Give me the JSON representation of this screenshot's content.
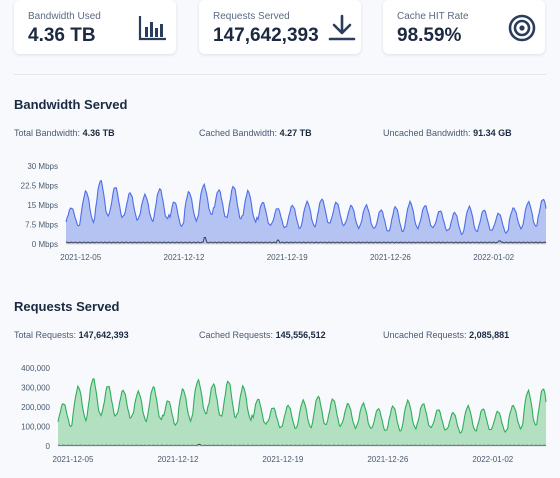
{
  "cards": [
    {
      "label": "Bandwidth Used",
      "value": "4.36 TB",
      "icon": "bar-chart-icon"
    },
    {
      "label": "Requests Served",
      "value": "147,642,393",
      "icon": "download-icon"
    },
    {
      "label": "Cache HIT Rate",
      "value": "98.59%",
      "icon": "target-icon"
    }
  ],
  "bandwidth": {
    "title": "Bandwidth Served",
    "stats": [
      {
        "label": "Total Bandwidth:",
        "value": "4.36 TB"
      },
      {
        "label": "Cached Bandwidth:",
        "value": "4.27 TB"
      },
      {
        "label": "Uncached Bandwidth:",
        "value": "91.34 GB"
      }
    ]
  },
  "requests": {
    "title": "Requests Served",
    "stats": [
      {
        "label": "Total Requests:",
        "value": "147,642,393"
      },
      {
        "label": "Cached Requests:",
        "value": "145,556,512"
      },
      {
        "label": "Uncached Requests:",
        "value": "2,085,881"
      }
    ]
  },
  "colors": {
    "bandwidth_line": "#4c6ee8",
    "bandwidth_fill": "#b5c3f3",
    "requests_line": "#2fae5a",
    "requests_fill": "#b3e0c0",
    "uncached_line": "#3c4350"
  },
  "chart_data": [
    {
      "type": "area",
      "title": "",
      "xlabel": "",
      "ylabel": "",
      "x_ticks": [
        "2021-12-05",
        "2021-12-12",
        "2021-12-19",
        "2021-12-26",
        "2022-01-02"
      ],
      "y_ticks": [
        "0 Mbps",
        "7.5 Mbps",
        "15 Mbps",
        "22.5 Mbps",
        "30 Mbps"
      ],
      "y_tick_values": [
        0,
        7.5,
        15,
        22.5,
        30
      ],
      "ylim": [
        0,
        30
      ],
      "grid": false,
      "days": [
        "2021-12-04",
        "2021-12-05",
        "2021-12-06",
        "2021-12-07",
        "2021-12-08",
        "2021-12-09",
        "2021-12-10",
        "2021-12-11",
        "2021-12-12",
        "2021-12-13",
        "2021-12-14",
        "2021-12-15",
        "2021-12-16",
        "2021-12-17",
        "2021-12-18",
        "2021-12-19",
        "2021-12-20",
        "2021-12-21",
        "2021-12-22",
        "2021-12-23",
        "2021-12-24",
        "2021-12-25",
        "2021-12-26",
        "2021-12-27",
        "2021-12-28",
        "2021-12-29",
        "2021-12-30",
        "2021-12-31",
        "2022-01-01",
        "2022-01-02",
        "2022-01-03",
        "2022-01-04",
        "2022-01-05"
      ],
      "series": [
        {
          "role": "total",
          "peaks": [
            14,
            20,
            24,
            22,
            20,
            19,
            21,
            16,
            20,
            23,
            21,
            22,
            20,
            16,
            14,
            15,
            16,
            17,
            16,
            15,
            15,
            13,
            14,
            16,
            15,
            13,
            12,
            14,
            13,
            12,
            14,
            16,
            17
          ],
          "troughs": [
            7,
            9,
            11,
            10,
            9,
            9,
            10,
            7,
            9,
            11,
            10,
            10,
            9,
            7,
            6,
            6,
            7,
            8,
            7,
            6,
            6,
            5,
            5,
            6,
            6,
            5,
            4,
            5,
            5,
            4,
            6,
            7,
            8
          ]
        },
        {
          "role": "uncached",
          "level": 0.6,
          "spike_days": [
            "2021-12-13",
            "2021-12-18",
            "2022-01-02"
          ],
          "spike_values": [
            2.5,
            1.5,
            1.2
          ]
        }
      ]
    },
    {
      "type": "area",
      "title": "",
      "xlabel": "",
      "ylabel": "",
      "x_ticks": [
        "2021-12-05",
        "2021-12-12",
        "2021-12-19",
        "2021-12-26",
        "2022-01-02"
      ],
      "y_ticks": [
        "0",
        "100,000",
        "200,000",
        "300,000",
        "400,000"
      ],
      "y_tick_values": [
        0,
        100000,
        200000,
        300000,
        400000
      ],
      "ylim": [
        0,
        400000
      ],
      "grid": false,
      "days": [
        "2021-12-04",
        "2021-12-05",
        "2021-12-06",
        "2021-12-07",
        "2021-12-08",
        "2021-12-09",
        "2021-12-10",
        "2021-12-11",
        "2021-12-12",
        "2021-12-13",
        "2021-12-14",
        "2021-12-15",
        "2021-12-16",
        "2021-12-17",
        "2021-12-18",
        "2021-12-19",
        "2021-12-20",
        "2021-12-21",
        "2021-12-22",
        "2021-12-23",
        "2021-12-24",
        "2021-12-25",
        "2021-12-26",
        "2021-12-27",
        "2021-12-28",
        "2021-12-29",
        "2021-12-30",
        "2021-12-31",
        "2022-01-01",
        "2022-01-02",
        "2022-01-03",
        "2022-01-04",
        "2022-01-05"
      ],
      "series": [
        {
          "role": "total",
          "peaks": [
            220000,
            300000,
            340000,
            310000,
            290000,
            280000,
            300000,
            230000,
            290000,
            340000,
            320000,
            330000,
            300000,
            240000,
            200000,
            210000,
            230000,
            250000,
            240000,
            220000,
            220000,
            190000,
            200000,
            230000,
            220000,
            190000,
            170000,
            200000,
            190000,
            180000,
            210000,
            280000,
            290000
          ],
          "troughs": [
            100000,
            140000,
            160000,
            150000,
            140000,
            130000,
            140000,
            110000,
            130000,
            160000,
            150000,
            150000,
            140000,
            110000,
            90000,
            90000,
            100000,
            110000,
            100000,
            90000,
            90000,
            80000,
            80000,
            90000,
            90000,
            80000,
            70000,
            80000,
            80000,
            70000,
            90000,
            110000,
            120000
          ]
        },
        {
          "role": "uncached",
          "level": 3000,
          "spike_days": [
            "2021-12-13"
          ],
          "spike_values": [
            8000
          ]
        }
      ]
    }
  ]
}
